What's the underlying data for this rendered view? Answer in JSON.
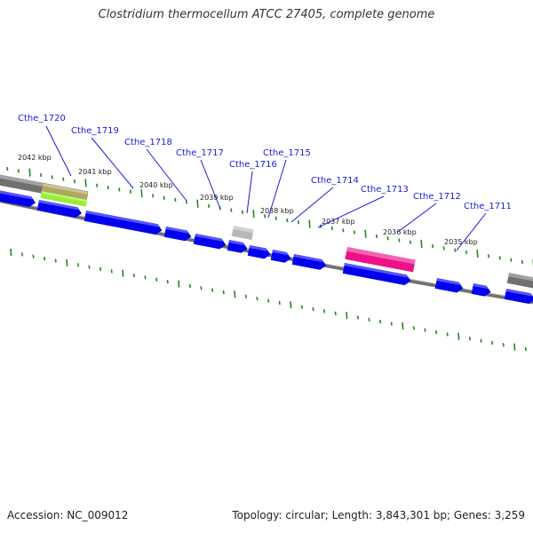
{
  "title": "Clostridium thermocellum ATCC 27405, complete genome",
  "footer": {
    "accession": "Accession: NC_009012",
    "summary": "Topology: circular; Length: 3,843,301 bp; Genes: 3,259"
  },
  "colors": {
    "gene_forward": "#0000ee",
    "backbone": "#888888",
    "tick": "#1e8a1e",
    "label": "#1a1adb",
    "feature_grey": "#707070",
    "feature_olive": "#b0a860",
    "feature_lime": "#99ee33",
    "feature_lightgrey": "#b8b8b8",
    "feature_pink": "#ee1188"
  },
  "kbp_labels": [
    "2042 kbp",
    "2041 kbp",
    "2040 kbp",
    "2039 kbp",
    "2038 kbp",
    "2037 kbp",
    "2036 kbp",
    "2035 kbp"
  ],
  "gene_labels": [
    "Cthe_1720",
    "Cthe_1719",
    "Cthe_1718",
    "Cthe_1717",
    "Cthe_1716",
    "Cthe_1715",
    "Cthe_1714",
    "Cthe_1713",
    "Cthe_1712",
    "Cthe_1711"
  ]
}
